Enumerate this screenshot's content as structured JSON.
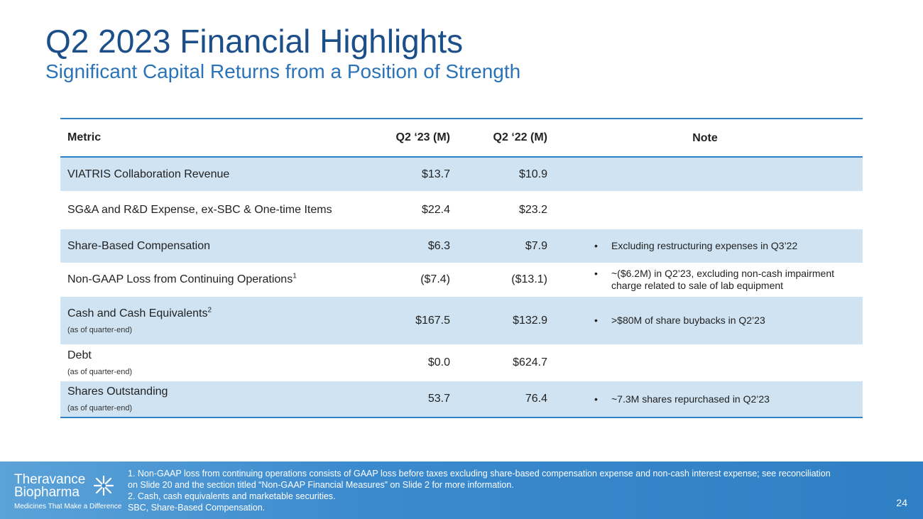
{
  "header": {
    "title": "Q2 2023 Financial Highlights",
    "subtitle": "Significant Capital Returns from a Position of Strength"
  },
  "table": {
    "columns": {
      "metric": "Metric",
      "q23": "Q2 ‘23 (M)",
      "q22": "Q2 ‘22 (M)",
      "note": "Note"
    },
    "rows": [
      {
        "metric": "VIATRIS Collaboration Revenue",
        "sup": "",
        "sub": "",
        "q23": "$13.7",
        "q22": "$10.9",
        "note": ""
      },
      {
        "metric": "SG&A and R&D Expense, ex-SBC & One-time Items",
        "sup": "",
        "sub": "",
        "q23": "$22.4",
        "q22": "$23.2",
        "note": ""
      },
      {
        "metric": "Share-Based Compensation",
        "sup": "",
        "sub": "",
        "q23": "$6.3",
        "q22": "$7.9",
        "note": "Excluding restructuring expenses in Q3’22"
      },
      {
        "metric": "Non-GAAP Loss from Continuing Operations",
        "sup": "1",
        "sub": "",
        "q23": "($7.4)",
        "q22": "($13.1)",
        "note": "~($6.2M) in Q2’23, excluding non-cash impairment charge related to sale of lab equipment"
      },
      {
        "metric": "Cash and Cash Equivalents",
        "sup": "2",
        "sub": "(as of quarter-end)",
        "q23": "$167.5",
        "q22": "$132.9",
        "note": ">$80M of share buybacks in Q2’23"
      },
      {
        "metric": "Debt",
        "sup": "",
        "sub": "(as of quarter-end)",
        "q23": "$0.0",
        "q22": "$624.7",
        "note": ""
      },
      {
        "metric": "Shares Outstanding",
        "sup": "",
        "sub": "(as of quarter-end)",
        "q23": "53.7",
        "q22": "76.4",
        "note": "~7.3M shares repurchased in Q2’23"
      }
    ]
  },
  "footer": {
    "logo": {
      "line1": "Theravance",
      "line2": "Biopharma",
      "tagline": "Medicines That Make a Difference"
    },
    "footnotes": [
      "1. Non-GAAP loss from continuing operations consists of GAAP loss before taxes excluding share-based compensation expense and non-cash interest expense; see reconciliation",
      "on Slide 20 and the section titled “Non-GAAP Financial Measures” on Slide 2 for more information.",
      "2. Cash, cash equivalents and marketable securities.",
      "SBC, Share-Based Compensation."
    ],
    "page_number": "24"
  },
  "colors": {
    "title": "#1c4f89",
    "subtitle": "#2b73b8",
    "rule": "#2f80c4",
    "shade": "#cfe3f2",
    "footer": "#3b8ace"
  },
  "icons": {
    "bullet": "•",
    "logo_mark": "star-burst-icon"
  }
}
